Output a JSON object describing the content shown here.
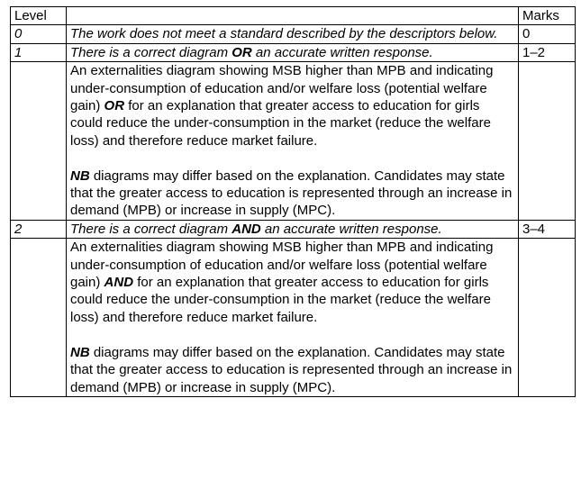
{
  "headers": {
    "level": "Level",
    "description": "",
    "marks": "Marks"
  },
  "rows": [
    {
      "level": "0",
      "summary": "The work does not meet a standard described by the descriptors below.",
      "marks": "0"
    },
    {
      "level": "1",
      "summary_a": "There is a correct diagram ",
      "summary_connector": "OR",
      "summary_b": " an accurate written response.",
      "marks": "1–2",
      "detail_a": "An externalities diagram showing MSB higher than MPB and indicating under-consumption of education and/or welfare loss (potential welfare gain) ",
      "detail_connector": "OR",
      "detail_b": " for an explanation that greater access to education for girls could reduce the under-consumption in the market (reduce the welfare loss) and therefore reduce market failure.",
      "note_label": "NB",
      "note_text": " diagrams may differ based on the explanation. Candidates may state that the greater access to education is represented through an increase in demand (MPB) or increase in supply (MPC)."
    },
    {
      "level": "2",
      "summary_a": "There is a correct diagram ",
      "summary_connector": "AND",
      "summary_b": " an accurate written response.",
      "marks": "3–4",
      "detail_a": "An externalities diagram showing MSB higher than MPB and indicating under-consumption of education and/or welfare loss (potential welfare gain) ",
      "detail_connector": "AND",
      "detail_b": " for an explanation that greater access to education for girls could reduce the under-consumption in the market (reduce the welfare loss) and therefore reduce market failure.",
      "note_label": "NB",
      "note_text": " diagrams may differ based on the explanation. Candidates may state that the greater access to education is represented through an increase in demand (MPB) or increase in supply (MPC)."
    }
  ]
}
